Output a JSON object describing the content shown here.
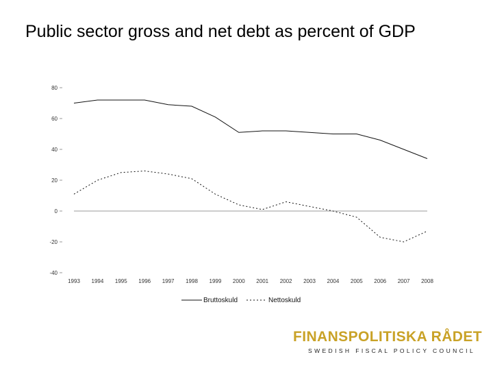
{
  "page": {
    "title": "Public sector gross and net debt as percent of GDP"
  },
  "chart_data": {
    "type": "line",
    "title": "",
    "xlabel": "",
    "ylabel": "",
    "categories": [
      "1993",
      "1994",
      "1995",
      "1996",
      "1997",
      "1998",
      "1999",
      "2000",
      "2001",
      "2002",
      "2003",
      "2004",
      "2005",
      "2006",
      "2007",
      "2008"
    ],
    "series": [
      {
        "name": "Bruttoskuld",
        "style": "solid",
        "values": [
          70,
          72,
          72,
          72,
          69,
          68,
          61,
          51,
          52,
          52,
          51,
          50,
          50,
          46,
          40,
          34
        ]
      },
      {
        "name": "Nettoskuld",
        "style": "dotted",
        "values": [
          11,
          20,
          25,
          26,
          24,
          21,
          11,
          4,
          1,
          6,
          3,
          0,
          -4,
          -17,
          -20,
          -13
        ]
      }
    ],
    "yticks": [
      "80",
      "60",
      "40",
      "20",
      "0",
      "-20",
      "-40"
    ],
    "ylim": [
      -40,
      80
    ],
    "zero_line": true,
    "grid": false,
    "legend_position": "bottom-center"
  },
  "logo": {
    "name": "FINANSPOLITISKA RÅDET",
    "tagline": "SWEDISH FISCAL POLICY COUNCIL",
    "color": "#c9a227"
  }
}
